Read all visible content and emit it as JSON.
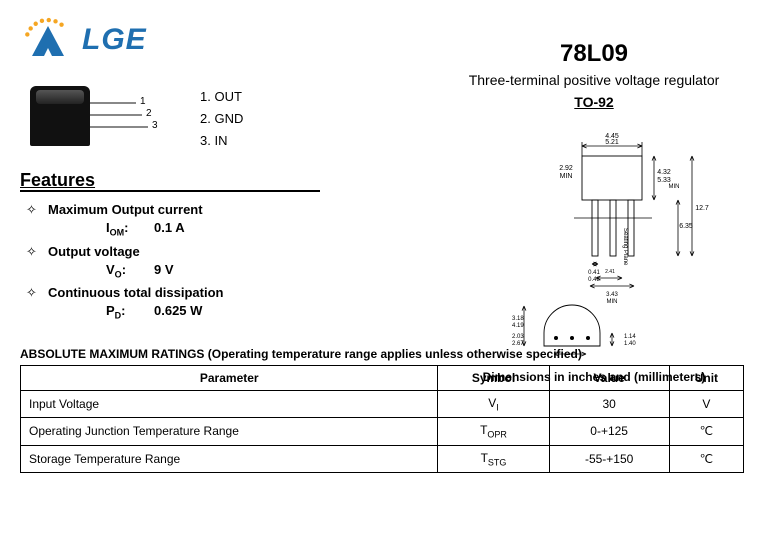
{
  "logo": {
    "text": "LGE",
    "text_color": "#1f6fb0",
    "arc_colors": [
      "#f5a623",
      "#f5a623",
      "#f5a623",
      "#f5a623",
      "#f5a623",
      "#f5a623",
      "#f5a623"
    ],
    "triangle_color": "#1f6fb0"
  },
  "header": {
    "part_number": "78L09",
    "subtitle": "Three-terminal positive voltage regulator",
    "package_link": "TO-92"
  },
  "pinout": {
    "pins": [
      {
        "n": "1",
        "name": "OUT"
      },
      {
        "n": "2",
        "name": "GND"
      },
      {
        "n": "3",
        "name": "IN"
      }
    ]
  },
  "features": {
    "heading": "Features",
    "bullet_glyph": "✧",
    "items": [
      {
        "title": "Maximum Output current",
        "symbol_html": "I<span class='sub'>OM</span>:",
        "value": "0.1 A"
      },
      {
        "title": "Output voltage",
        "symbol_html": "V<span class='sub'>O</span>:",
        "value": "9 V"
      },
      {
        "title": "Continuous total dissipation",
        "symbol_html": "P<span class='sub'>D</span>:",
        "value": "0.625 W"
      }
    ]
  },
  "package_diagram": {
    "caption": "Dimensions in inches and (millimeters)",
    "dims": {
      "top_w": "4.45 / 5.21",
      "body_h": "4.32 / 5.33",
      "min_left": "2.92 MIN",
      "min_right": "MIN",
      "overall_h": "12.7",
      "bot_right": "6.35",
      "lead_w": "0.41 / 0.48",
      "seating": "Seating Plane",
      "span": "3.43 / MIN",
      "lead_pitch": "2.41 / 2.67",
      "dia_a": "3.18 / 4.19",
      "dia_b": "2.03 / 2.67",
      "dia_c": "2.03 / 2.67",
      "flat": "1.14 / 1.40"
    },
    "line_color": "#000000"
  },
  "ratings": {
    "heading": "ABSOLUTE MAXIMUM RATINGS (Operating temperature range applies unless otherwise specified)",
    "columns": [
      "Parameter",
      "Symbol",
      "Value",
      "Unit"
    ],
    "rows": [
      {
        "param": "Input Voltage",
        "sym_html": "V<span class='sub'>I</span>",
        "value": "30",
        "unit": "V"
      },
      {
        "param": "Operating Junction Temperature Range",
        "sym_html": "T<span class='sub'>OPR</span>",
        "value": "0-+125",
        "unit": "℃"
      },
      {
        "param": "Storage Temperature Range",
        "sym_html": "T<span class='sub'>STG</span>",
        "value": "-55-+150",
        "unit": "℃"
      }
    ]
  }
}
